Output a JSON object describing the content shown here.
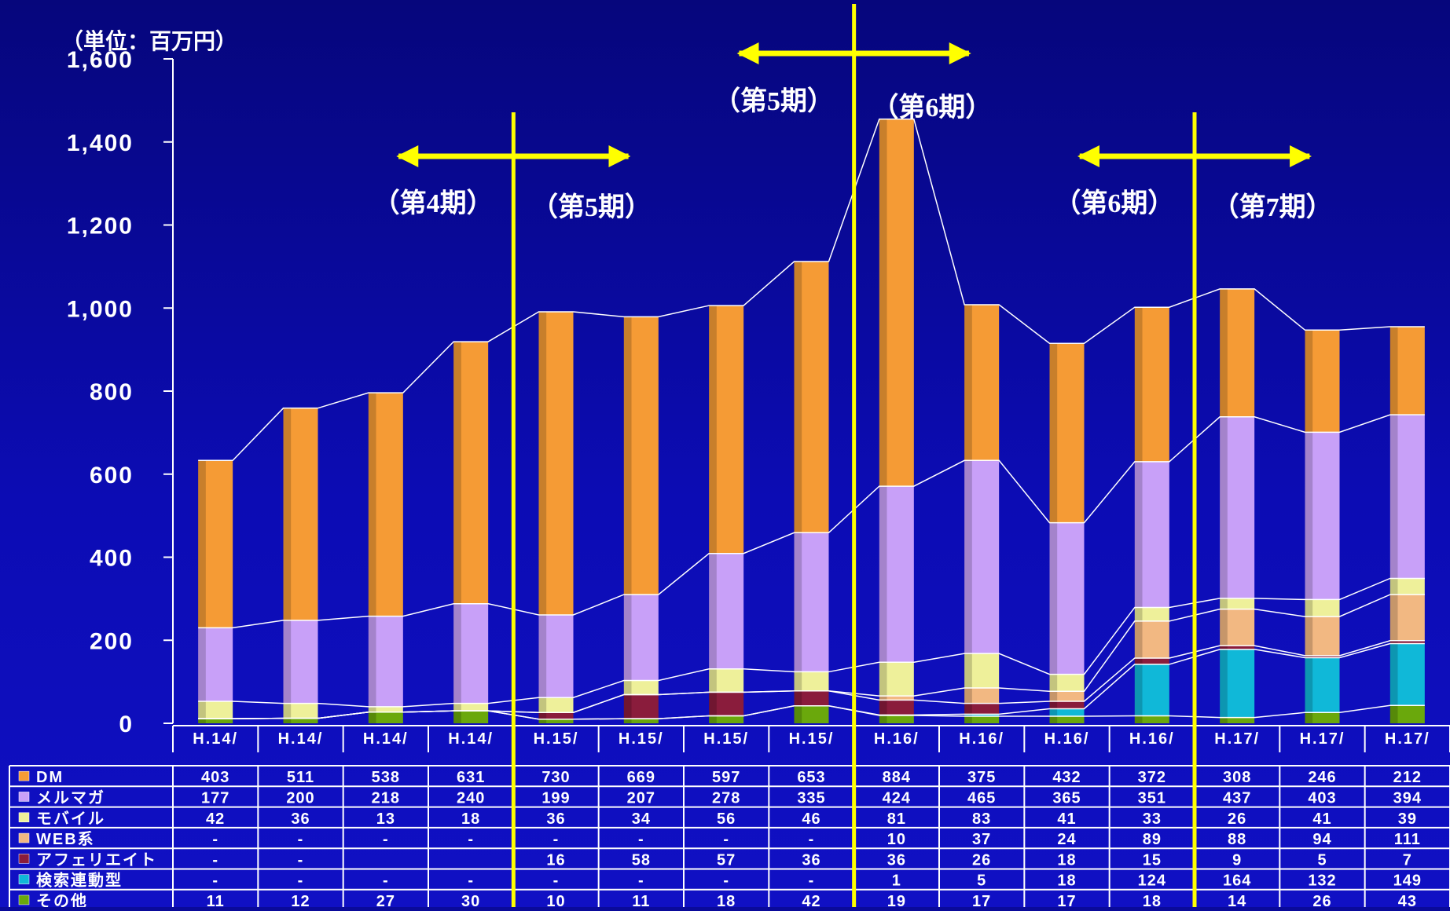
{
  "chart_data": {
    "type": "bar",
    "stacked": true,
    "unit_label": "（単位：百万円）",
    "ylim": [
      0,
      1600
    ],
    "yticks": [
      "0",
      "200",
      "400",
      "600",
      "800",
      "1,000",
      "1,200",
      "1,400",
      "1,600"
    ],
    "categories": [
      "H.14/",
      "H.14/",
      "H.14/",
      "H.14/",
      "H.15/",
      "H.15/",
      "H.15/",
      "H.15/",
      "H.16/",
      "H.16/",
      "H.16/",
      "H.16/",
      "H.17/",
      "H.17/",
      "H.17/"
    ],
    "series": [
      {
        "name": "その他",
        "color": "#6aa80c",
        "values": [
          11,
          12,
          27,
          30,
          10,
          11,
          18,
          42,
          19,
          17,
          17,
          18,
          14,
          26,
          43
        ],
        "labels": [
          "11",
          "12",
          "27",
          "30",
          "10",
          "11",
          "18",
          "42",
          "19",
          "17",
          "17",
          "18",
          "14",
          "26",
          "43"
        ]
      },
      {
        "name": "検索連動型",
        "color": "#10b8d8",
        "values": [
          0,
          0,
          0,
          0,
          0,
          0,
          0,
          0,
          1,
          5,
          18,
          124,
          164,
          132,
          149
        ],
        "labels": [
          "-",
          "-",
          "-",
          "-",
          "-",
          "-",
          "-",
          "-",
          "1",
          "5",
          "18",
          "124",
          "164",
          "132",
          "149"
        ]
      },
      {
        "name": "アフェリエイト",
        "color": "#8a1c3c",
        "values": [
          0,
          0,
          0,
          0,
          16,
          58,
          57,
          36,
          36,
          26,
          18,
          15,
          9,
          5,
          7
        ],
        "labels": [
          "-",
          "-",
          "",
          "",
          "16",
          "58",
          "57",
          "36",
          "36",
          "26",
          "18",
          "15",
          "9",
          "5",
          "7"
        ]
      },
      {
        "name": "WEB系",
        "color": "#f2b882",
        "values": [
          0,
          0,
          0,
          0,
          0,
          0,
          0,
          0,
          10,
          37,
          24,
          89,
          88,
          94,
          111
        ],
        "labels": [
          "-",
          "-",
          "-",
          "-",
          "-",
          "-",
          "-",
          "-",
          "10",
          "37",
          "24",
          "89",
          "88",
          "94",
          "111"
        ]
      },
      {
        "name": "モバイル",
        "color": "#eef09a",
        "values": [
          42,
          36,
          13,
          18,
          36,
          34,
          56,
          46,
          81,
          83,
          41,
          33,
          26,
          41,
          39
        ],
        "labels": [
          "42",
          "36",
          "13",
          "18",
          "36",
          "34",
          "56",
          "46",
          "81",
          "83",
          "41",
          "33",
          "26",
          "41",
          "39"
        ]
      },
      {
        "name": "メルマガ",
        "color": "#c8a0f8",
        "values": [
          177,
          200,
          218,
          240,
          199,
          207,
          278,
          335,
          424,
          465,
          365,
          351,
          437,
          403,
          394
        ],
        "labels": [
          "177",
          "200",
          "218",
          "240",
          "199",
          "207",
          "278",
          "335",
          "424",
          "465",
          "365",
          "351",
          "437",
          "403",
          "394"
        ]
      },
      {
        "name": "DM",
        "color": "#f59b35",
        "values": [
          403,
          511,
          538,
          631,
          730,
          669,
          597,
          653,
          884,
          375,
          432,
          372,
          308,
          246,
          212
        ],
        "labels": [
          "403",
          "511",
          "538",
          "631",
          "730",
          "669",
          "597",
          "653",
          "884",
          "375",
          "432",
          "372",
          "308",
          "246",
          "212"
        ]
      }
    ],
    "table_row_order": [
      "DM",
      "メルマガ",
      "モバイル",
      "WEB系",
      "アフェリエイト",
      "検索連動型",
      "その他"
    ],
    "annotations": [
      {
        "text": "（第4期）",
        "anchor_category_index": 3
      },
      {
        "text": "（第5期）",
        "anchor_category_index": 4
      },
      {
        "text": "（第5期）",
        "anchor_category_index": 7
      },
      {
        "text": "（第6期）",
        "anchor_category_index": 8
      },
      {
        "text": "（第6期）",
        "anchor_category_index": 11
      },
      {
        "text": "（第7期）",
        "anchor_category_index": 12
      }
    ],
    "period_dividers": [
      {
        "between": [
          3,
          4
        ]
      },
      {
        "between": [
          7,
          8
        ]
      },
      {
        "between": [
          11,
          12
        ]
      }
    ],
    "colors": {
      "background": "#0a0aa8",
      "divider": "#ffff00",
      "connector": "#ffffff"
    }
  }
}
